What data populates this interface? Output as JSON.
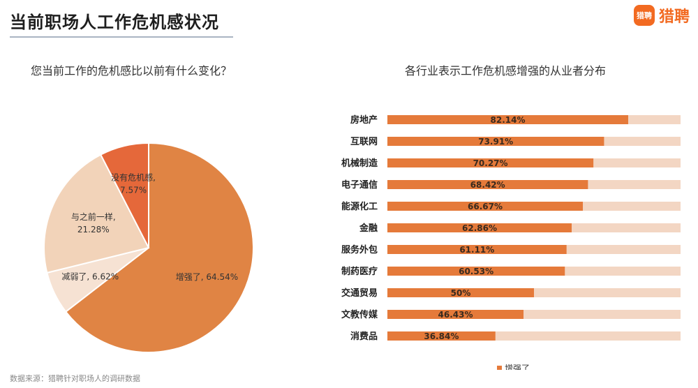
{
  "header": {
    "title": "当前职场人工作危机感状况",
    "logo_badge": "猎聘",
    "logo_text": "猎聘"
  },
  "left_subtitle": "您当前工作的危机感比以前有什么变化？",
  "right_subtitle": "各行业表示工作危机感增强的从业者分布",
  "source": "数据来源：猎聘针对职场人的调研数据",
  "chart_data": [
    {
      "type": "pie",
      "title": "您当前工作的危机感比以前有什么变化？",
      "slices": [
        {
          "label": "增强了",
          "value": 64.54,
          "text": "增强了, 64.54%",
          "color": "#e08444"
        },
        {
          "label": "减弱了",
          "value": 6.62,
          "text": "减弱了, 6.62%",
          "color": "#f6e2d3"
        },
        {
          "label": "与之前一样",
          "value": 21.28,
          "text_line1": "与之前一样,",
          "text_line2": "21.28%",
          "color": "#f2d3b9"
        },
        {
          "label": "没有危机感",
          "value": 7.57,
          "text_line1": "没有危机感,",
          "text_line2": "7.57%",
          "color": "#e5683a"
        }
      ]
    },
    {
      "type": "bar",
      "orientation": "horizontal",
      "title": "各行业表示工作危机感增强的从业者分布",
      "categories": [
        "房地产",
        "互联网",
        "机械制造",
        "电子通信",
        "能源化工",
        "金融",
        "服务外包",
        "制药医疗",
        "交通贸易",
        "文教传媒",
        "消费品"
      ],
      "values": [
        82.14,
        73.91,
        70.27,
        68.42,
        66.67,
        62.86,
        61.11,
        60.53,
        50,
        46.43,
        36.84
      ],
      "labels": [
        "82.14%",
        "73.91%",
        "70.27%",
        "68.42%",
        "66.67%",
        "62.86%",
        "61.11%",
        "60.53%",
        "50%",
        "46.43%",
        "36.84%"
      ],
      "xlim": [
        0,
        100
      ],
      "bar_color": "#e57a3a",
      "track_color": "#f3d6c3",
      "legend": [
        {
          "name": "增强了",
          "color": "#e57a3a"
        }
      ],
      "legend_position": "bottom"
    }
  ]
}
